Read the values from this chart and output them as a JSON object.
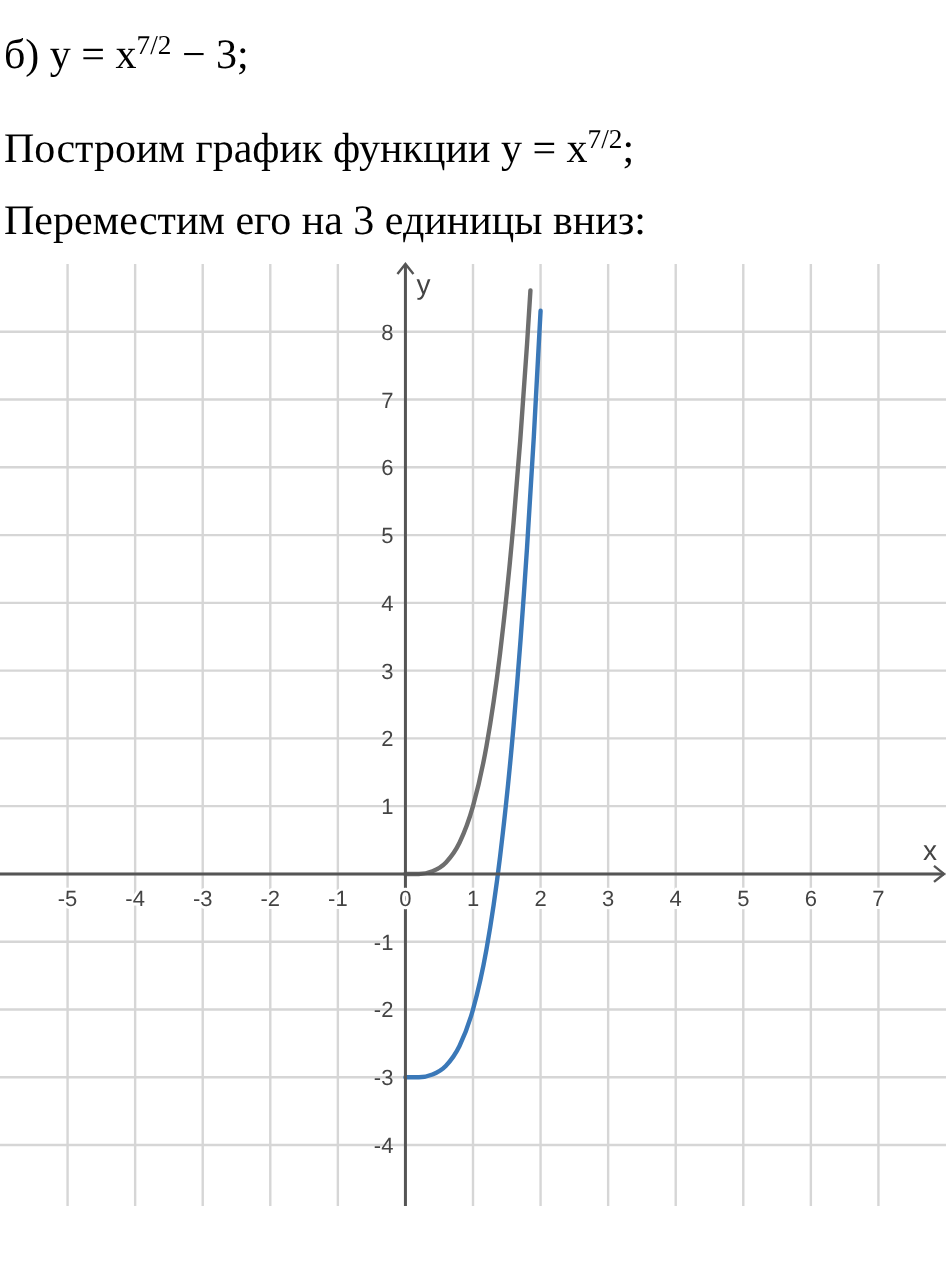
{
  "chart_data": {
    "type": "line",
    "title": "б) y = x$^{7/2}$ − 3;",
    "subtitle": "Построим график функции y = x$^{7/2}$;",
    "annotations": [
      "Переместим его на 3 единицы вниз:"
    ],
    "xlabel": "x",
    "ylabel": "y",
    "xlim": [
      -6,
      8
    ],
    "ylim": [
      -4.9,
      9
    ],
    "xticks": [
      -5,
      -4,
      -3,
      -2,
      -1,
      0,
      1,
      2,
      3,
      4,
      5,
      6,
      7
    ],
    "yticks": [
      -4,
      -3,
      -2,
      -1,
      {
        "value": 0,
        "label": null
      },
      1,
      2,
      3,
      4,
      5,
      6,
      7,
      8
    ],
    "grid": true,
    "series": [
      {
        "color": "#6e6e6e",
        "x": [
          0,
          0.2,
          0.4,
          0.6,
          0.8,
          1,
          1.2,
          1.4,
          1.6,
          1.7,
          1.8,
          1.85
        ],
        "values": [
          0,
          0,
          0.04,
          0.17,
          0.46,
          1,
          1.89,
          3.25,
          5.18,
          6.41,
          7.82,
          8.61
        ]
      },
      {
        "color": "#3a78b8",
        "x": [
          0,
          0.2,
          0.4,
          0.6,
          0.8,
          1,
          1.2,
          1.4,
          1.6,
          1.8,
          1.9,
          2.0
        ],
        "values": [
          -3,
          -3,
          -2.96,
          -2.83,
          -2.54,
          -2,
          -1.11,
          0.25,
          2.18,
          4.82,
          6.45,
          8.31
        ]
      }
    ]
  }
}
